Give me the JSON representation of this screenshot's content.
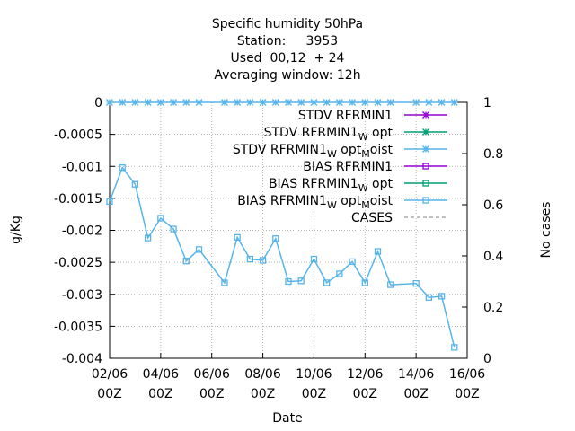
{
  "chart_data": {
    "type": "line",
    "title_lines": [
      "Specific humidity 50hPa",
      "Station:     3953",
      "Used  00,12  + 24",
      "Averaging window: 12h"
    ],
    "xlabel": "Date",
    "ylabel": "g/Kg",
    "y2label": "No cases",
    "x_range_days": [
      0,
      14
    ],
    "ylim": [
      -0.004,
      0
    ],
    "y2lim": [
      0,
      1
    ],
    "y_ticks": [
      "0",
      "-0.0005",
      "-0.001",
      "-0.0015",
      "-0.002",
      "-0.0025",
      "-0.003",
      "-0.0035",
      "-0.004"
    ],
    "y_tick_values": [
      0,
      -0.0005,
      -0.001,
      -0.0015,
      -0.002,
      -0.0025,
      -0.003,
      -0.0035,
      -0.004
    ],
    "y2_ticks": [
      "1",
      "0.8",
      "0.6",
      "0.4",
      "0.2",
      "0"
    ],
    "y2_tick_values": [
      1,
      0.8,
      0.6,
      0.4,
      0.2,
      0
    ],
    "x_ticks": [
      {
        "day": 0,
        "line1": "02/06",
        "line2": "00Z"
      },
      {
        "day": 2,
        "line1": "04/06",
        "line2": "00Z"
      },
      {
        "day": 4,
        "line1": "06/06",
        "line2": "00Z"
      },
      {
        "day": 6,
        "line1": "08/06",
        "line2": "00Z"
      },
      {
        "day": 8,
        "line1": "10/06",
        "line2": "00Z"
      },
      {
        "day": 10,
        "line1": "12/06",
        "line2": "00Z"
      },
      {
        "day": 12,
        "line1": "14/06",
        "line2": "00Z"
      },
      {
        "day": 14,
        "line1": "16/06",
        "line2": "00Z"
      }
    ],
    "grid": true,
    "legend_position": "top-right",
    "legend": [
      {
        "label": "STDV RFRMIN1",
        "sub": "",
        "color": "#9400d3",
        "marker": "star"
      },
      {
        "label": "STDV RFRMIN1",
        "sub": "W",
        "tail": "opt",
        "color": "#009e73",
        "marker": "star"
      },
      {
        "label": "STDV RFRMIN1",
        "sub": "W",
        "tail": "opt",
        "sub2": "M",
        "tail2": "oist",
        "color": "#56b4e9",
        "marker": "star"
      },
      {
        "label": "BIAS RFRMIN1",
        "sub": "",
        "color": "#9400d3",
        "marker": "square"
      },
      {
        "label": "BIAS RFRMIN1",
        "sub": "W",
        "tail": "opt",
        "color": "#009e73",
        "marker": "square"
      },
      {
        "label": "BIAS RFRMIN1",
        "sub": "W",
        "tail": "opt",
        "sub2": "M",
        "tail2": "oist",
        "color": "#56b4e9",
        "marker": "square"
      },
      {
        "label": "CASES",
        "sub": "",
        "color": "#808080",
        "marker": "dash"
      }
    ],
    "bias_series": {
      "name": "BIAS RFRMIN1 W opt M oist",
      "color": "#56b4e9",
      "x_days": [
        0,
        0.5,
        1,
        1.5,
        2,
        2.5,
        3,
        3.5,
        4.5,
        5,
        5.5,
        6,
        6.5,
        7,
        7.5,
        8,
        8.5,
        9,
        9.5,
        10,
        10.5,
        11,
        12,
        12.5,
        13,
        13.5
      ],
      "values": [
        -0.00155,
        -0.00102,
        -0.00128,
        -0.00212,
        -0.00181,
        -0.00198,
        -0.00248,
        -0.0023,
        -0.00282,
        -0.00211,
        -0.00245,
        -0.00247,
        -0.00213,
        -0.0028,
        -0.00279,
        -0.00245,
        -0.00282,
        -0.00268,
        -0.00249,
        -0.00282,
        -0.00233,
        -0.00285,
        -0.00283,
        -0.00305,
        -0.00303,
        -0.00383
      ]
    },
    "stdv_series": {
      "name": "STDV RFRMIN1 W opt M oist",
      "color": "#56b4e9",
      "x_days": [
        0,
        0.5,
        1,
        1.5,
        2,
        2.5,
        3,
        3.5,
        4.5,
        5,
        5.5,
        6,
        6.5,
        7,
        7.5,
        8,
        8.5,
        9,
        9.5,
        10,
        10.5,
        11,
        12,
        12.5,
        13,
        13.5
      ],
      "values": [
        0,
        0,
        0,
        0,
        0,
        0,
        0,
        0,
        0,
        0,
        0,
        0,
        0,
        0,
        0,
        0,
        0,
        0,
        0,
        0,
        0,
        0,
        0,
        0,
        0,
        0
      ]
    }
  }
}
